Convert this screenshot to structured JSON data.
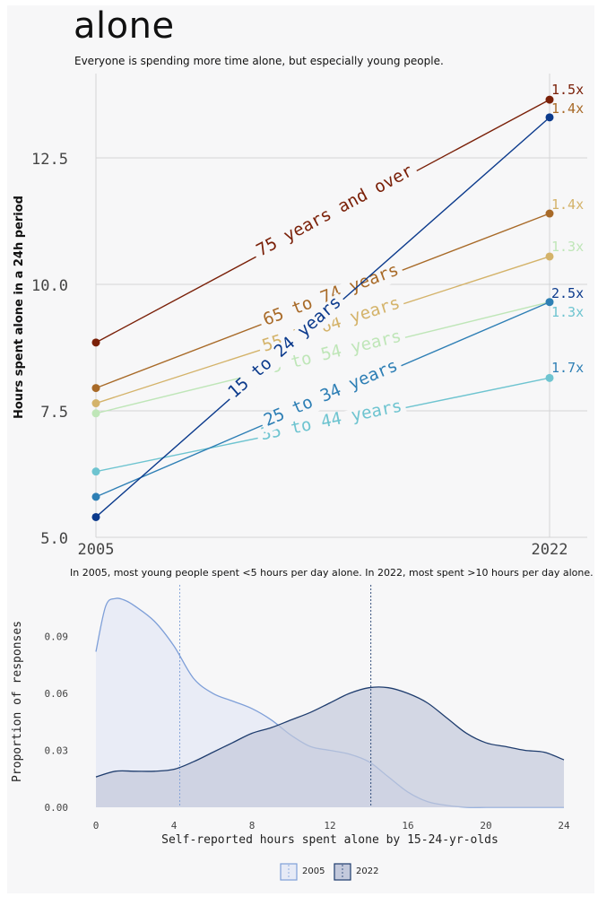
{
  "header": {
    "title": "alone",
    "subtitle": "Everyone is spending more time alone, but especially young people."
  },
  "chart_data": [
    {
      "type": "line",
      "title": "alone",
      "subtitle": "Everyone is spending more time alone, but especially young people.",
      "xlabel": "",
      "ylabel": "Hours spent alone in a 24h period",
      "x": [
        2005,
        2022
      ],
      "x_tick_labels": [
        "2005",
        "2022"
      ],
      "ylim": [
        5.0,
        13.9
      ],
      "y_ticks": [
        5.0,
        7.5,
        10.0,
        12.5
      ],
      "y_tick_labels": [
        "5.0",
        "7.5",
        "10.0",
        "12.5"
      ],
      "grid": true,
      "series": [
        {
          "name": "75 years and over",
          "values": [
            8.85,
            13.65
          ],
          "ratio_label": "1.5x",
          "color": "#7a2008"
        },
        {
          "name": "65 to 74 years",
          "values": [
            7.95,
            11.4
          ],
          "ratio_label": "1.4x",
          "color": "#a86a28"
        },
        {
          "name": "55 to 64 years",
          "values": [
            7.65,
            10.55
          ],
          "ratio_label": "1.4x",
          "color": "#d4b36a"
        },
        {
          "name": "45 to 54 years",
          "values": [
            7.45,
            9.65
          ],
          "ratio_label": "1.3x",
          "color": "#bfe6b8"
        },
        {
          "name": "35 to 44 years",
          "values": [
            6.3,
            8.15
          ],
          "ratio_label": "1.3x",
          "color": "#6ec4d0"
        },
        {
          "name": "25 to 34 years",
          "values": [
            5.8,
            9.65
          ],
          "ratio_label": "1.7x",
          "color": "#2e7fb5"
        },
        {
          "name": "15 to 24 years",
          "values": [
            5.4,
            13.3
          ],
          "ratio_label": "2.5x",
          "color": "#0b3a8c"
        }
      ]
    },
    {
      "type": "area",
      "title": "In 2005, most young people spent <5 hours per day alone. In 2022, most spent >10 hours per day alone.",
      "xlabel": "Self-reported hours spent alone by 15-24-yr-olds",
      "ylabel": "Proportion of responses",
      "xlim": [
        0,
        24
      ],
      "x_ticks": [
        0,
        4,
        8,
        12,
        16,
        20,
        24
      ],
      "x_tick_labels": [
        "0",
        "4",
        "8",
        "12",
        "16",
        "20",
        "24"
      ],
      "ylim": [
        0,
        0.112
      ],
      "y_ticks": [
        0,
        0.03,
        0.06,
        0.09
      ],
      "y_tick_labels": [
        "0.00",
        "0.03",
        "0.06",
        "0.09"
      ],
      "grid": false,
      "series": [
        {
          "name": "2005",
          "median": 4.3,
          "x": [
            0,
            0.5,
            1,
            1.5,
            2,
            3,
            4,
            5,
            6,
            7,
            8,
            9,
            10,
            11,
            12,
            13,
            14,
            15,
            16,
            17,
            18,
            19,
            20,
            21,
            22,
            23,
            24
          ],
          "values": [
            0.082,
            0.106,
            0.11,
            0.109,
            0.106,
            0.098,
            0.085,
            0.068,
            0.06,
            0.056,
            0.052,
            0.046,
            0.038,
            0.032,
            0.03,
            0.028,
            0.024,
            0.016,
            0.008,
            0.003,
            0.001,
            0.0,
            0.0,
            0.0,
            0.0,
            0.0,
            0.0
          ],
          "color": "#7e9fd8",
          "fill": "#e6eaf6"
        },
        {
          "name": "2022",
          "median": 14.1,
          "x": [
            0,
            1,
            2,
            3,
            4,
            5,
            6,
            7,
            8,
            9,
            10,
            11,
            12,
            13,
            14,
            15,
            16,
            17,
            18,
            19,
            20,
            21,
            22,
            23,
            24
          ],
          "values": [
            0.016,
            0.019,
            0.019,
            0.019,
            0.02,
            0.024,
            0.029,
            0.034,
            0.039,
            0.042,
            0.046,
            0.05,
            0.055,
            0.06,
            0.063,
            0.063,
            0.06,
            0.055,
            0.047,
            0.039,
            0.034,
            0.032,
            0.03,
            0.029,
            0.025
          ],
          "color": "#1f3d6e",
          "fill": "#c3c9dc"
        }
      ]
    }
  ]
}
